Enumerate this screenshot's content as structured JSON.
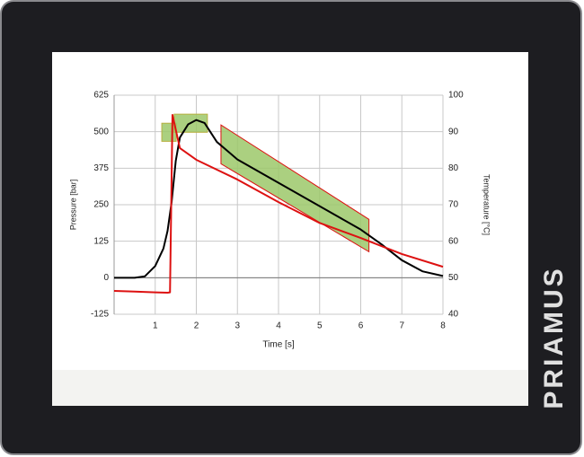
{
  "brand": "PRIAMUS",
  "chart_data": {
    "type": "line",
    "xlabel": "Time [s]",
    "ylabel": "Pressure [bar]",
    "y2label": "Temperature [°C]",
    "xlim": [
      0,
      8
    ],
    "xticks": [
      1,
      2,
      3,
      4,
      5,
      6,
      7,
      8
    ],
    "ylim": [
      -125,
      625
    ],
    "yticks": [
      -125,
      0,
      125,
      250,
      375,
      500,
      625
    ],
    "y2lim": [
      40,
      100
    ],
    "y2ticks": [
      40,
      50,
      60,
      70,
      80,
      90,
      100
    ],
    "grid": true,
    "series": [
      {
        "name": "Pressure",
        "color": "#000000",
        "x": [
          0,
          0.5,
          0.75,
          1.0,
          1.2,
          1.3,
          1.4,
          1.5,
          1.6,
          1.8,
          2.0,
          2.2,
          2.5,
          3.0,
          3.5,
          4.0,
          4.5,
          5.0,
          5.5,
          6.0,
          6.5,
          7.0,
          7.5,
          8.0
        ],
        "values": [
          0,
          0,
          5,
          40,
          100,
          160,
          260,
          400,
          480,
          525,
          540,
          530,
          465,
          405,
          365,
          325,
          285,
          245,
          205,
          165,
          115,
          60,
          22,
          6
        ]
      },
      {
        "name": "Temperature",
        "color": "#dd1111",
        "axis": "y2",
        "x": [
          0,
          0.5,
          1.0,
          1.3,
          1.36,
          1.42,
          1.6,
          2.0,
          3.0,
          4.0,
          5.0,
          6.0,
          7.0,
          8.0
        ],
        "values": [
          46.4,
          46.2,
          46.0,
          45.9,
          46.0,
          94.6,
          85.5,
          82.3,
          76.9,
          70.7,
          65.0,
          60.9,
          56.5,
          53.0
        ]
      }
    ],
    "tolerance_windows": [
      {
        "x": [
          1.16,
          1.51
        ],
        "y": [
          467,
          529
        ],
        "color": "#9cc86a"
      },
      {
        "x": [
          1.46,
          2.27
        ],
        "y": [
          498,
          560
        ],
        "color": "#9cc86a"
      }
    ],
    "envelope": {
      "x": [
        2.6,
        6.2
      ],
      "upper": [
        523,
        200
      ],
      "lower": [
        390,
        89
      ],
      "color": "#9cc86a",
      "edge_color": "#dd1111"
    }
  }
}
